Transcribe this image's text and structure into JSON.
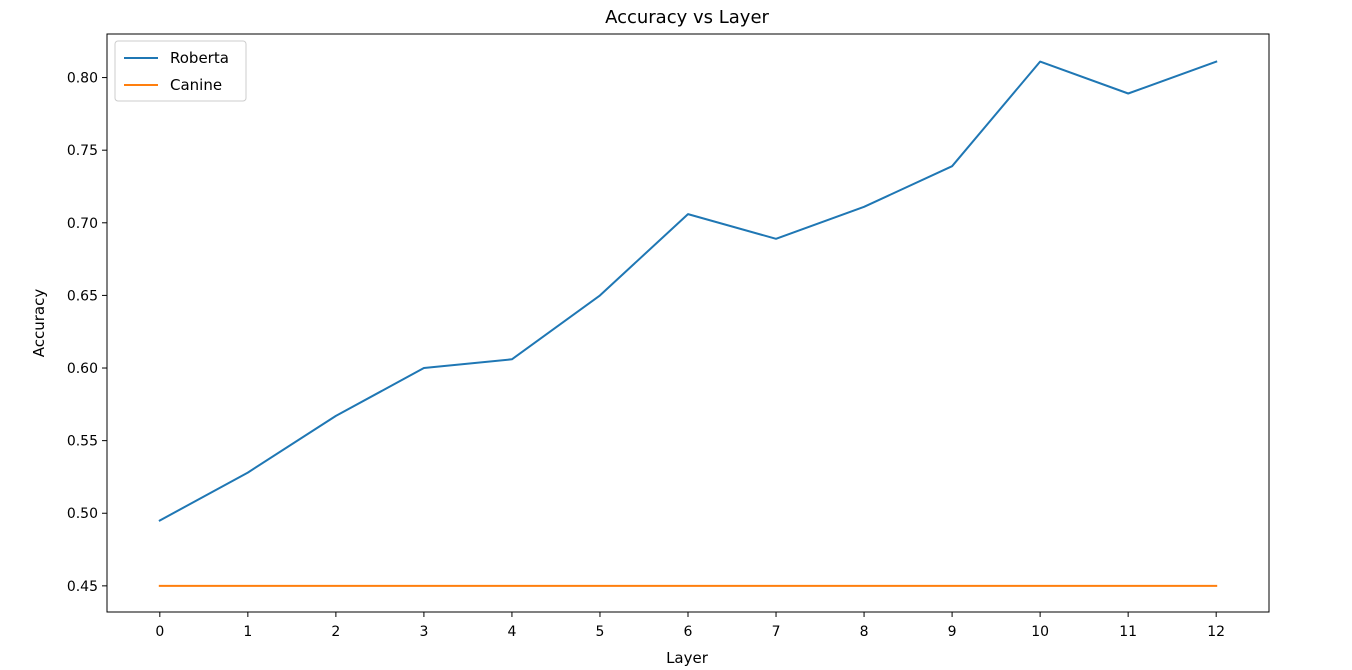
{
  "chart_data": {
    "type": "line",
    "title": "Accuracy vs Layer",
    "xlabel": "Layer",
    "ylabel": "Accuracy",
    "x": [
      0,
      1,
      2,
      3,
      4,
      5,
      6,
      7,
      8,
      9,
      10,
      11,
      12
    ],
    "x_ticks": [
      "0",
      "1",
      "2",
      "3",
      "4",
      "5",
      "6",
      "7",
      "8",
      "9",
      "10",
      "11",
      "12"
    ],
    "y_ticks": [
      "0.45",
      "0.50",
      "0.55",
      "0.60",
      "0.65",
      "0.70",
      "0.75",
      "0.80"
    ],
    "xlim": [
      -0.6,
      12.6
    ],
    "ylim": [
      0.432,
      0.83
    ],
    "grid": false,
    "legend_position": "upper-left",
    "series": [
      {
        "name": "Roberta",
        "color": "#1f77b4",
        "values": [
          0.495,
          0.528,
          0.567,
          0.6,
          0.606,
          0.65,
          0.706,
          0.689,
          0.711,
          0.739,
          0.811,
          0.789,
          0.811
        ]
      },
      {
        "name": "Canine",
        "color": "#ff7f0e",
        "values": [
          0.45,
          0.45,
          0.45,
          0.45,
          0.45,
          0.45,
          0.45,
          0.45,
          0.45,
          0.45,
          0.45,
          0.45,
          0.45
        ]
      }
    ]
  }
}
